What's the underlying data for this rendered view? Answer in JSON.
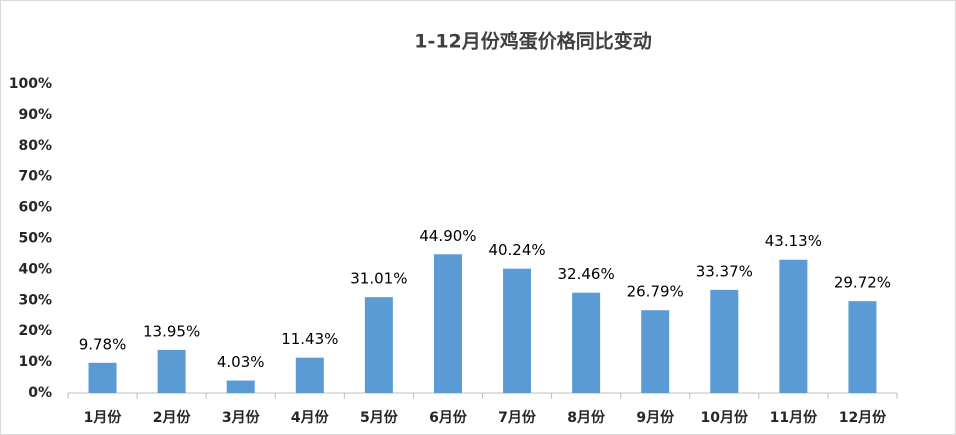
{
  "chart_data": {
    "type": "bar",
    "title": "1-12月份鸡蛋价格同比变动",
    "categories": [
      "1月份",
      "2月份",
      "3月份",
      "4月份",
      "5月份",
      "6月份",
      "7月份",
      "8月份",
      "9月份",
      "10月份",
      "11月份",
      "12月份"
    ],
    "values": [
      9.78,
      13.95,
      4.03,
      11.43,
      31.01,
      44.9,
      40.24,
      32.46,
      26.79,
      33.37,
      43.13,
      29.72
    ],
    "value_labels": [
      "9.78%",
      "13.95%",
      "4.03%",
      "11.43%",
      "31.01%",
      "44.90%",
      "40.24%",
      "32.46%",
      "26.79%",
      "33.37%",
      "43.13%",
      "29.72%"
    ],
    "color": "#5b9bd5",
    "ylim": [
      0,
      100
    ],
    "yticks": [
      {
        "value": 0,
        "label": "0%"
      },
      {
        "value": 10,
        "label": "10%"
      },
      {
        "value": 20,
        "label": "20%"
      },
      {
        "value": 30,
        "label": "30%"
      },
      {
        "value": 40,
        "label": "40%"
      },
      {
        "value": 50,
        "label": "50%"
      },
      {
        "value": 60,
        "label": "60%"
      },
      {
        "value": 70,
        "label": "70%"
      },
      {
        "value": 80,
        "label": "80%"
      },
      {
        "value": 90,
        "label": "90%"
      },
      {
        "value": 100,
        "label": "100%"
      }
    ],
    "grid": false
  }
}
